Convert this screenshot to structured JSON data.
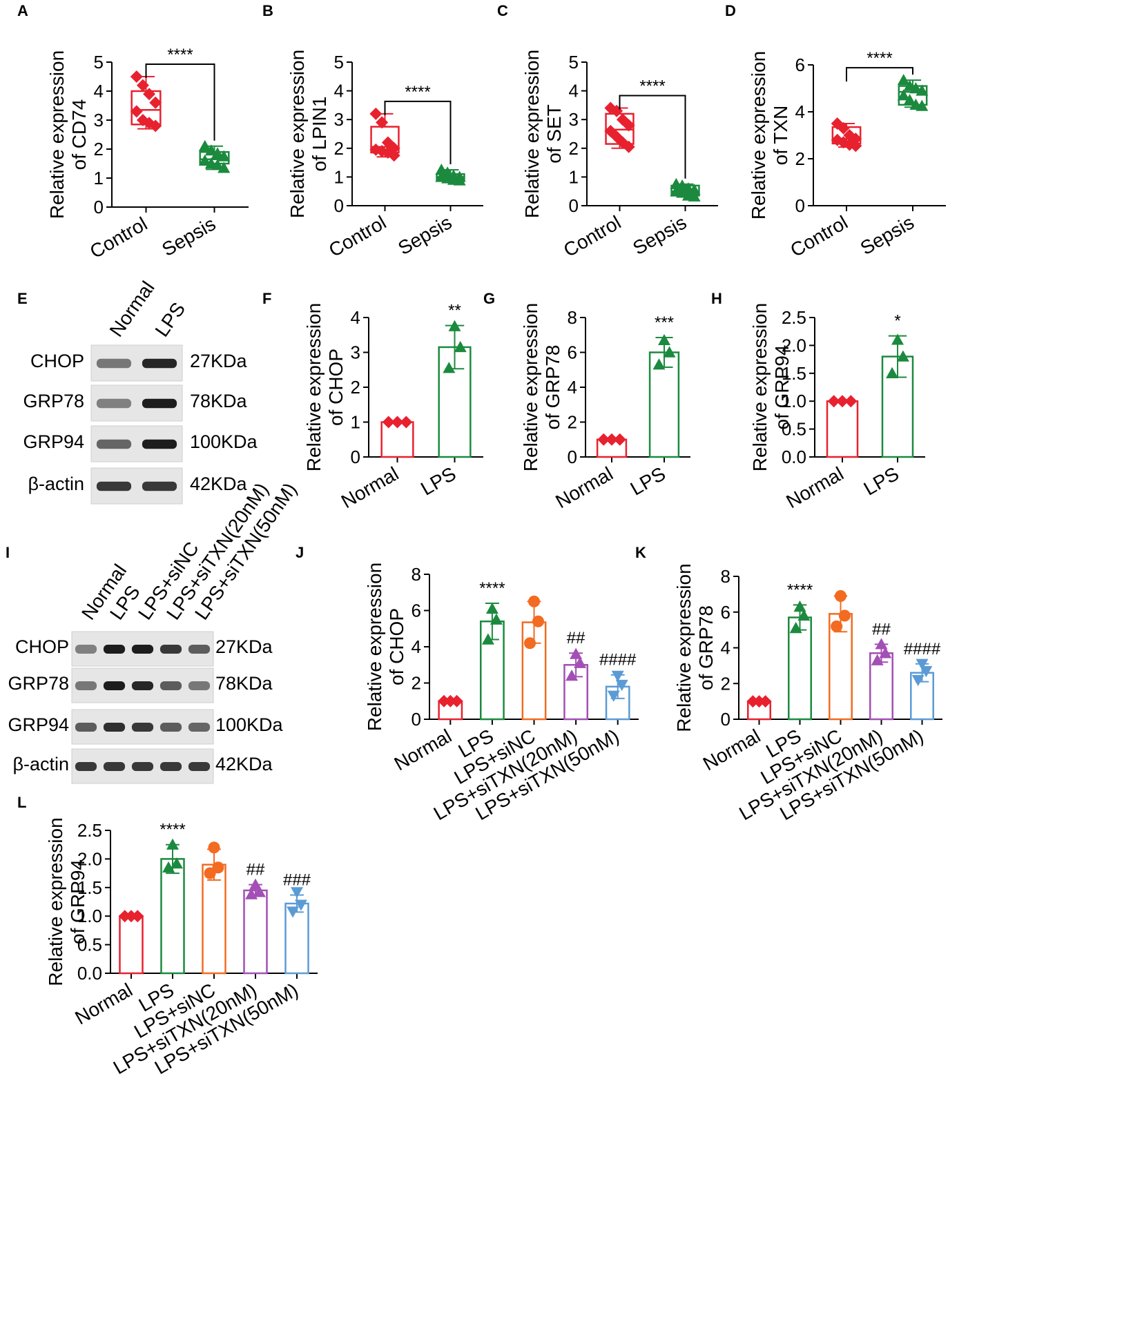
{
  "colors": {
    "axis": "#000000",
    "normal_red": "#e8212f",
    "lps_green": "#1b8a3e",
    "sinc_orange": "#f26b21",
    "si20_purple": "#a34fb5",
    "si50_blue": "#5b9bd5"
  },
  "blots": [
    {
      "panel": "E",
      "lanes": [
        "Normal",
        "LPS"
      ],
      "rows": [
        {
          "protein": "CHOP",
          "size": "27KDa"
        },
        {
          "protein": "GRP78",
          "size": "78KDa"
        },
        {
          "protein": "GRP94",
          "size": "100KDa"
        },
        {
          "protein": "β-actin",
          "size": "42KDa"
        }
      ]
    },
    {
      "panel": "I",
      "lanes": [
        "Normal",
        "LPS",
        "LPS+siNC",
        "LPS+siTXN(20nM)",
        "LPS+siTXN(50nM)"
      ],
      "rows": [
        {
          "protein": "CHOP",
          "size": "27KDa"
        },
        {
          "protein": "GRP78",
          "size": "78KDa"
        },
        {
          "protein": "GRP94",
          "size": "100KDa"
        },
        {
          "protein": "β-actin",
          "size": "42KDa"
        }
      ]
    }
  ],
  "chart_data": [
    {
      "panel": "A",
      "type": "box",
      "ylabel": [
        "Relative expression",
        "of CD74"
      ],
      "ylim": [
        0,
        5
      ],
      "yticks": [
        0,
        1,
        2,
        3,
        4,
        5
      ],
      "categories": [
        "Control",
        "Sepsis"
      ],
      "boxes": [
        {
          "min": 2.7,
          "q1": 2.85,
          "median": 3.35,
          "q3": 4.0,
          "max": 4.5
        },
        {
          "min": 1.3,
          "q1": 1.5,
          "median": 1.65,
          "q3": 1.9,
          "max": 2.1
        }
      ],
      "points": [
        [
          4.5,
          4.2,
          3.9,
          3.6,
          3.3,
          3.0,
          2.9,
          2.8
        ],
        [
          2.1,
          1.95,
          1.85,
          1.75,
          1.6,
          1.5,
          1.45,
          1.35
        ]
      ],
      "significance": [
        "****"
      ]
    },
    {
      "panel": "B",
      "type": "box",
      "ylabel": [
        "Relative expression",
        "of LPIN1"
      ],
      "ylim": [
        0,
        5
      ],
      "yticks": [
        0,
        1,
        2,
        3,
        4,
        5
      ],
      "categories": [
        "Control",
        "Sepsis"
      ],
      "boxes": [
        {
          "min": 1.7,
          "q1": 1.85,
          "median": 2.05,
          "q3": 2.75,
          "max": 3.2
        },
        {
          "min": 0.85,
          "q1": 0.9,
          "median": 1.0,
          "q3": 1.1,
          "max": 1.25
        }
      ],
      "points": [
        [
          3.2,
          2.9,
          2.2,
          2.0,
          1.95,
          1.9,
          1.85,
          1.75
        ],
        [
          1.25,
          1.15,
          1.05,
          1.0,
          1.0,
          0.95,
          0.9,
          0.88
        ]
      ],
      "significance": [
        "****"
      ]
    },
    {
      "panel": "C",
      "type": "box",
      "ylabel": [
        "Relative expression",
        "of SET"
      ],
      "ylim": [
        0,
        5
      ],
      "yticks": [
        0,
        1,
        2,
        3,
        4,
        5
      ],
      "categories": [
        "Control",
        "Sepsis"
      ],
      "boxes": [
        {
          "min": 2.0,
          "q1": 2.15,
          "median": 2.65,
          "q3": 3.2,
          "max": 3.4
        },
        {
          "min": 0.3,
          "q1": 0.35,
          "median": 0.5,
          "q3": 0.7,
          "max": 0.75
        }
      ],
      "points": [
        [
          3.4,
          3.3,
          3.0,
          2.8,
          2.6,
          2.4,
          2.2,
          2.05
        ],
        [
          0.75,
          0.7,
          0.6,
          0.55,
          0.5,
          0.45,
          0.35,
          0.32
        ]
      ],
      "significance": [
        "****"
      ]
    },
    {
      "panel": "D",
      "type": "box",
      "ylabel": [
        "Relative expression",
        "of TXN"
      ],
      "ylim": [
        0,
        6
      ],
      "yticks": [
        0,
        2,
        4,
        6
      ],
      "categories": [
        "Control",
        "Sepsis"
      ],
      "boxes": [
        {
          "min": 2.5,
          "q1": 2.65,
          "median": 2.85,
          "q3": 3.35,
          "max": 3.5
        },
        {
          "min": 4.2,
          "q1": 4.3,
          "median": 4.85,
          "q3": 5.1,
          "max": 5.35
        }
      ],
      "points": [
        [
          3.5,
          3.3,
          3.0,
          2.85,
          2.8,
          2.7,
          2.6,
          2.55
        ],
        [
          5.35,
          5.1,
          5.0,
          4.9,
          4.7,
          4.5,
          4.3,
          4.25
        ]
      ],
      "significance": [
        "****"
      ]
    },
    {
      "panel": "F",
      "type": "bar",
      "ylabel": [
        "Relative expression",
        "of CHOP"
      ],
      "ylim": [
        0,
        4
      ],
      "yticks": [
        0,
        1,
        2,
        3,
        4
      ],
      "categories": [
        "Normal",
        "LPS"
      ],
      "values": [
        1.0,
        3.15
      ],
      "errors": [
        0,
        0.62
      ],
      "points": [
        [
          1.0,
          1.0,
          1.0
        ],
        [
          3.75,
          3.15,
          2.55
        ]
      ],
      "significance": [
        "",
        "**"
      ]
    },
    {
      "panel": "G",
      "type": "bar",
      "ylabel": [
        "Relative expression",
        "of GRP78"
      ],
      "ylim": [
        0,
        8
      ],
      "yticks": [
        0,
        2,
        4,
        6,
        8
      ],
      "categories": [
        "Normal",
        "LPS"
      ],
      "values": [
        1.0,
        6.0
      ],
      "errors": [
        0,
        0.85
      ],
      "points": [
        [
          1.0,
          1.0,
          1.0
        ],
        [
          6.7,
          6.0,
          5.3
        ]
      ],
      "significance": [
        "",
        "***"
      ]
    },
    {
      "panel": "H",
      "type": "bar",
      "ylabel": [
        "Relative expression",
        "of GRP94"
      ],
      "ylim": [
        0,
        2.5
      ],
      "yticks": [
        0.0,
        0.5,
        1.0,
        1.5,
        2.0,
        2.5
      ],
      "categories": [
        "Normal",
        "LPS"
      ],
      "values": [
        1.0,
        1.8
      ],
      "errors": [
        0,
        0.37
      ],
      "points": [
        [
          1.0,
          1.0,
          1.0
        ],
        [
          2.1,
          1.8,
          1.5
        ]
      ],
      "significance": [
        "",
        "*"
      ]
    },
    {
      "panel": "J",
      "type": "bar",
      "ylabel": [
        "Relative expression",
        "of CHOP"
      ],
      "ylim": [
        0,
        8
      ],
      "yticks": [
        0,
        2,
        4,
        6,
        8
      ],
      "categories": [
        "Normal",
        "LPS",
        "LPS+siNC",
        "LPS+siTXN(20nM)",
        "LPS+siTXN(50nM)"
      ],
      "values": [
        1.0,
        5.4,
        5.35,
        3.0,
        1.8
      ],
      "errors": [
        0,
        1.0,
        1.15,
        0.65,
        0.65
      ],
      "points": [
        [
          1.0,
          1.0,
          1.0
        ],
        [
          6.1,
          5.5,
          4.4
        ],
        [
          6.5,
          5.4,
          4.2
        ],
        [
          3.6,
          3.1,
          2.4
        ],
        [
          2.4,
          1.9,
          1.3
        ]
      ],
      "significance": [
        "",
        "****",
        "",
        "##",
        "####"
      ]
    },
    {
      "panel": "K",
      "type": "bar",
      "ylabel": [
        "Relative expression",
        "of GRP78"
      ],
      "ylim": [
        0,
        8
      ],
      "yticks": [
        0,
        2,
        4,
        6,
        8
      ],
      "categories": [
        "Normal",
        "LPS",
        "LPS+siNC",
        "LPS+siTXN(20nM)",
        "LPS+siTXN(50nM)"
      ],
      "values": [
        1.0,
        5.7,
        5.9,
        3.7,
        2.6
      ],
      "errors": [
        0,
        0.7,
        1.0,
        0.5,
        0.5
      ],
      "points": [
        [
          1.0,
          1.0,
          1.0
        ],
        [
          6.3,
          5.8,
          5.1
        ],
        [
          6.9,
          5.8,
          5.2
        ],
        [
          4.2,
          3.7,
          3.3
        ],
        [
          3.1,
          2.7,
          2.2
        ]
      ],
      "significance": [
        "",
        "****",
        "",
        "##",
        "####"
      ]
    },
    {
      "panel": "L",
      "type": "bar",
      "ylabel": [
        "Relative expression",
        "of GRP94"
      ],
      "ylim": [
        0,
        2.5
      ],
      "yticks": [
        0.0,
        0.5,
        1.0,
        1.5,
        2.0,
        2.5
      ],
      "categories": [
        "Normal",
        "LPS",
        "LPS+siNC",
        "LPS+siTXN(20nM)",
        "LPS+siTXN(50nM)"
      ],
      "values": [
        1.0,
        2.0,
        1.9,
        1.45,
        1.22
      ],
      "errors": [
        0,
        0.25,
        0.27,
        0.1,
        0.15
      ],
      "points": [
        [
          1.0,
          1.0,
          1.0
        ],
        [
          2.25,
          1.92,
          1.85
        ],
        [
          2.2,
          1.85,
          1.75
        ],
        [
          1.55,
          1.42,
          1.38
        ],
        [
          1.42,
          1.2,
          1.08
        ]
      ],
      "significance": [
        "",
        "****",
        "",
        "##",
        "###"
      ]
    }
  ]
}
